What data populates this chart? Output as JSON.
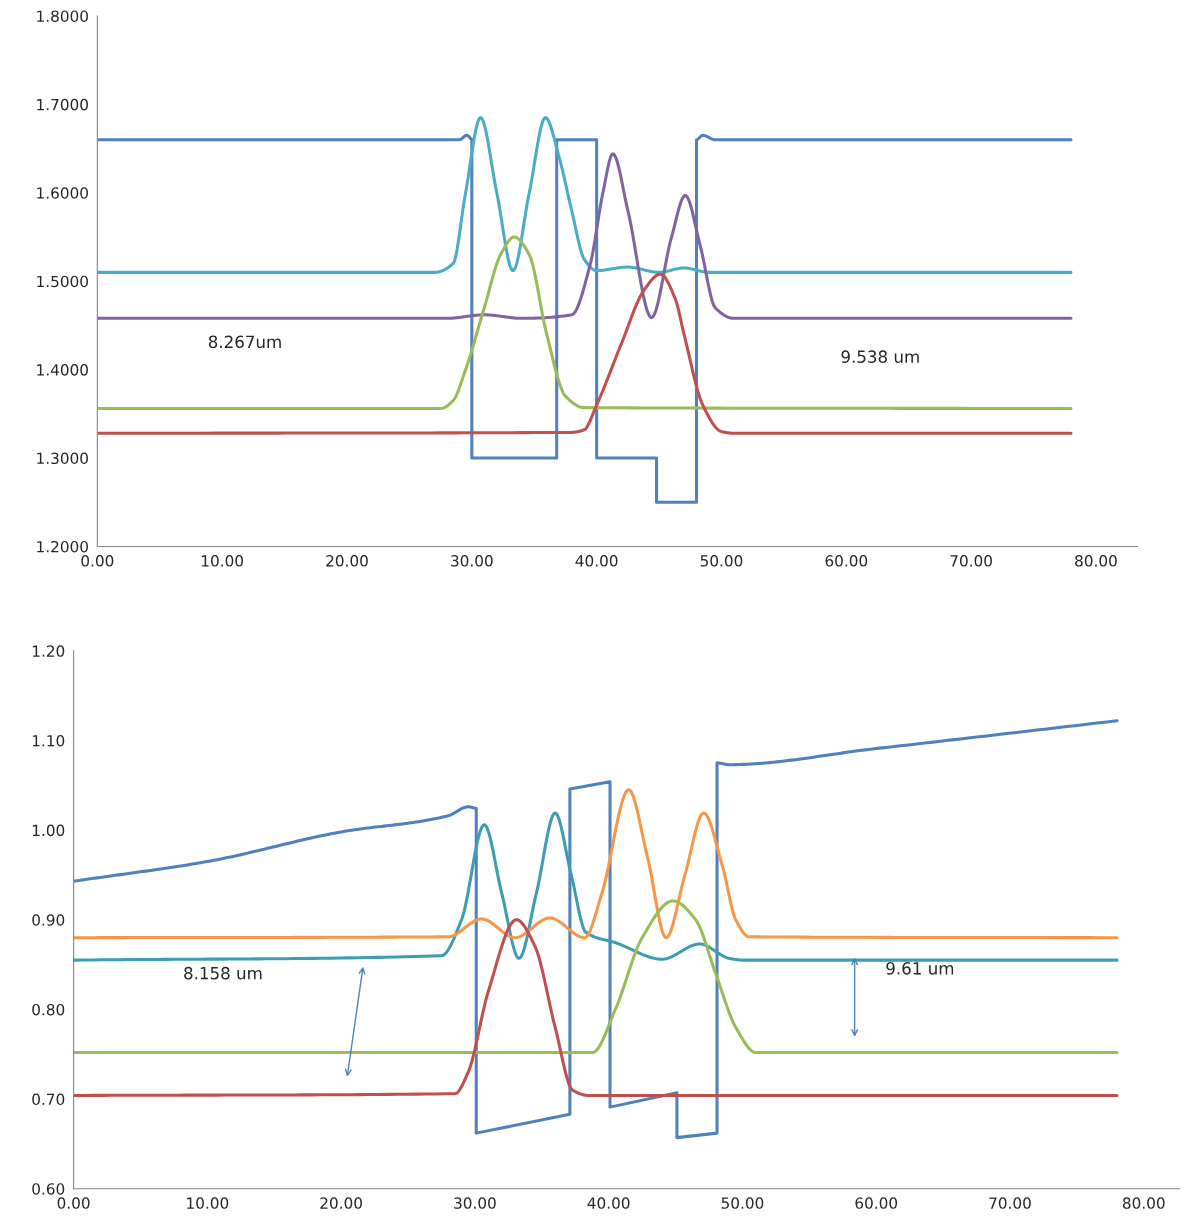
{
  "chart_data": [
    {
      "type": "line",
      "xlim": [
        0,
        83.3
      ],
      "ylim": [
        1.2,
        1.8
      ],
      "xticks": [
        {
          "value": 0,
          "label": "0.00"
        },
        {
          "value": 10,
          "label": "10.00"
        },
        {
          "value": 20,
          "label": "20.00"
        },
        {
          "value": 30,
          "label": "30.00"
        },
        {
          "value": 40,
          "label": "40.00"
        },
        {
          "value": 50,
          "label": "50.00"
        },
        {
          "value": 60,
          "label": "60.00"
        },
        {
          "value": 70,
          "label": "70.00"
        },
        {
          "value": 80,
          "label": "80.00"
        }
      ],
      "yticks": [
        {
          "value": 1.2,
          "label": "1.2000"
        },
        {
          "value": 1.3,
          "label": "1.3000"
        },
        {
          "value": 1.4,
          "label": "1.4000"
        },
        {
          "value": 1.5,
          "label": "1.5000"
        },
        {
          "value": 1.6,
          "label": "1.6000"
        },
        {
          "value": 1.7,
          "label": "1.7000"
        },
        {
          "value": 1.8,
          "label": "1.8000"
        }
      ],
      "grid": false,
      "marker": "none",
      "line_style": "solid",
      "annotations": [
        "8.267um",
        "9.538 um"
      ],
      "series": [
        {
          "color": "#4f81bd",
          "x": [
            0,
            29,
            29.6,
            30,
            30,
            36.8,
            36.8,
            40,
            40,
            44.8,
            44.8,
            48,
            48,
            48.5,
            49.5,
            78
          ],
          "values": [
            1.66,
            1.66,
            1.665,
            1.66,
            1.3,
            1.3,
            1.66,
            1.66,
            1.3,
            1.3,
            1.25,
            1.25,
            1.66,
            1.665,
            1.66,
            1.66
          ]
        },
        {
          "color": "#4bacc6",
          "x": [
            0,
            27,
            28.5,
            29.5,
            30.7,
            32,
            33.3,
            34.6,
            35.9,
            37,
            38,
            39,
            40,
            42.5,
            45,
            47,
            49,
            78
          ],
          "values": [
            1.51,
            1.51,
            1.52,
            1.6,
            1.685,
            1.6,
            1.512,
            1.6,
            1.685,
            1.64,
            1.58,
            1.525,
            1.512,
            1.516,
            1.51,
            1.515,
            1.51,
            1.51
          ]
        },
        {
          "color": "#8064a2",
          "x": [
            0,
            28,
            31,
            34,
            38,
            39.5,
            40.5,
            41.3,
            42.5,
            44.4,
            46,
            47.1,
            48.3,
            49.5,
            51,
            78
          ],
          "values": [
            1.458,
            1.458,
            1.462,
            1.458,
            1.462,
            1.52,
            1.6,
            1.644,
            1.58,
            1.459,
            1.55,
            1.597,
            1.54,
            1.47,
            1.458,
            1.458
          ]
        },
        {
          "color": "#9bbb59",
          "x": [
            0,
            27.5,
            28.5,
            29.5,
            31,
            32.3,
            33.4,
            34.6,
            36,
            37.5,
            39,
            78
          ],
          "values": [
            1.356,
            1.356,
            1.365,
            1.4,
            1.47,
            1.53,
            1.55,
            1.53,
            1.44,
            1.37,
            1.357,
            1.356
          ]
        },
        {
          "color": "#c0504d",
          "x": [
            0,
            38,
            39,
            40,
            42,
            43.8,
            45.1,
            46.3,
            47,
            48.5,
            50,
            51,
            78
          ],
          "values": [
            1.328,
            1.329,
            1.332,
            1.36,
            1.43,
            1.49,
            1.508,
            1.48,
            1.44,
            1.36,
            1.33,
            1.328,
            1.328
          ]
        }
      ]
    },
    {
      "type": "line",
      "xlim": [
        0,
        82.7
      ],
      "ylim": [
        0.6,
        1.2
      ],
      "xticks": [
        {
          "value": 0,
          "label": "0.00"
        },
        {
          "value": 10,
          "label": "10.00"
        },
        {
          "value": 20,
          "label": "20.00"
        },
        {
          "value": 30,
          "label": "30.00"
        },
        {
          "value": 40,
          "label": "40.00"
        },
        {
          "value": 50,
          "label": "50.00"
        },
        {
          "value": 60,
          "label": "60.00"
        },
        {
          "value": 70,
          "label": "70.00"
        },
        {
          "value": 80,
          "label": "80.00"
        }
      ],
      "yticks": [
        {
          "value": 0.6,
          "label": "0.60"
        },
        {
          "value": 0.7,
          "label": "0.70"
        },
        {
          "value": 0.8,
          "label": "0.80"
        },
        {
          "value": 0.9,
          "label": "0.90"
        },
        {
          "value": 1.0,
          "label": "1.00"
        },
        {
          "value": 1.1,
          "label": "1.10"
        },
        {
          "value": 1.2,
          "label": "1.20"
        }
      ],
      "grid": false,
      "marker": "none",
      "line_style": "solid",
      "annotations": [
        "8.158 um",
        "9.61 um"
      ],
      "series": [
        {
          "color": "#4f81bd",
          "x": [
            0,
            10,
            20,
            28,
            29.5,
            30.1,
            30.1,
            37.1,
            37.1,
            40.1,
            40.1,
            45.1,
            45.1,
            48.1,
            48.1,
            49,
            60,
            78
          ],
          "values": [
            0.943,
            0.965,
            0.998,
            1.016,
            1.026,
            1.024,
            0.662,
            0.683,
            1.046,
            1.054,
            0.691,
            0.707,
            0.657,
            0.662,
            1.075,
            1.073,
            1.091,
            1.122
          ]
        },
        {
          "color": "#3f9db3",
          "x": [
            0,
            27.5,
            29,
            30.7,
            32,
            33.3,
            34.6,
            36,
            37.2,
            38.3,
            40.6,
            44,
            46.8,
            49,
            50,
            78
          ],
          "values": [
            0.855,
            0.86,
            0.9,
            1.006,
            0.93,
            0.857,
            0.93,
            1.019,
            0.95,
            0.886,
            0.874,
            0.856,
            0.873,
            0.857,
            0.855,
            0.855
          ]
        },
        {
          "color": "#f79646",
          "x": [
            0,
            28,
            30.5,
            33,
            35.6,
            38.2,
            39.5,
            41.5,
            42.9,
            44.3,
            45.7,
            47.1,
            48.5,
            49.5,
            50.5,
            78
          ],
          "values": [
            0.88,
            0.881,
            0.901,
            0.88,
            0.902,
            0.88,
            0.93,
            1.045,
            0.97,
            0.88,
            0.95,
            1.019,
            0.96,
            0.9,
            0.881,
            0.88
          ]
        },
        {
          "color": "#9bbb59",
          "x": [
            0,
            38.8,
            40.5,
            42.5,
            44.8,
            46.5,
            48,
            49.5,
            51,
            78
          ],
          "values": [
            0.752,
            0.752,
            0.8,
            0.88,
            0.921,
            0.9,
            0.84,
            0.78,
            0.752,
            0.752
          ]
        },
        {
          "color": "#c0504d",
          "x": [
            0,
            28.5,
            29.5,
            31,
            33.1,
            34.5,
            36,
            37.3,
            38.5,
            78
          ],
          "values": [
            0.704,
            0.706,
            0.73,
            0.82,
            0.9,
            0.87,
            0.78,
            0.71,
            0.704,
            0.704
          ]
        }
      ]
    }
  ]
}
